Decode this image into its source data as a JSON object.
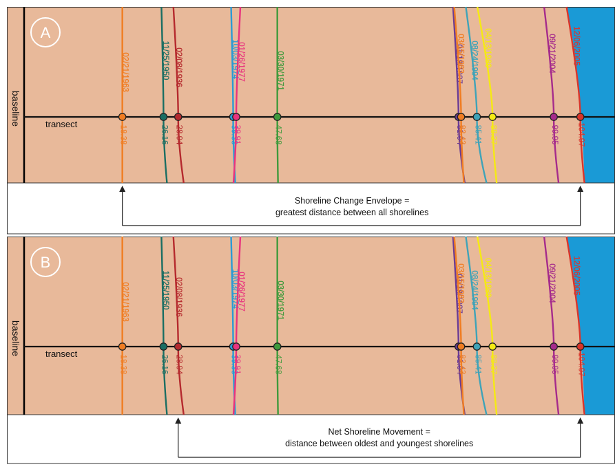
{
  "colors": {
    "land": "#e8b99a",
    "water": "#1a9ad6",
    "border": "#333333",
    "arrow": "#222222"
  },
  "labels": {
    "baseline": "baseline",
    "transect": "transect"
  },
  "shorelines": [
    {
      "date": "02/21/1963",
      "distance": "18.38",
      "color": "#f07d22",
      "position": 18.38
    },
    {
      "date": "11/25/1950",
      "distance": "26.16",
      "color": "#1a6e63",
      "position": 26.16
    },
    {
      "date": "02/08/1936",
      "distance": "28.94",
      "color": "#b52a2e",
      "position": 28.94
    },
    {
      "date": "10/03/1974",
      "distance": "39.33",
      "color": "#2b9bd4",
      "position": 39.33
    },
    {
      "date": "01/26/1977",
      "distance": "39.91",
      "color": "#e8337e",
      "position": 39.91
    },
    {
      "date": "03/30/1971",
      "distance": "47.68",
      "color": "#3f9a3c",
      "position": 47.68
    },
    {
      "date": "01/18/1987",
      "distance": "81.94",
      "color": "#6a3b94",
      "position": 81.94
    },
    {
      "date": "03/15/1983",
      "distance": "82.43",
      "color": "#f07d22",
      "position": 82.43
    },
    {
      "date": "08/24/1994",
      "distance": "85.41",
      "color": "#3fa3b8",
      "position": 85.41
    },
    {
      "date": "04/13/1989",
      "distance": "88.37",
      "color": "#f5ea13",
      "position": 88.37
    },
    {
      "date": "09/21/2004",
      "distance": "99.95",
      "color": "#a52b8c",
      "position": 99.95
    },
    {
      "date": "12/06/2005",
      "distance": "104.97",
      "color": "#d9352b",
      "position": 104.97
    }
  ],
  "panels": [
    {
      "letter": "A",
      "caption_line1": "Shoreline Change Envelope =",
      "caption_line2": "greatest distance between all shorelines",
      "from_date": "02/21/1963",
      "to_date": "12/06/2005"
    },
    {
      "letter": "B",
      "caption_line1": "Net Shoreline Movement =",
      "caption_line2": "distance between oldest and youngest shorelines",
      "from_date": "02/08/1936",
      "to_date": "12/06/2005"
    }
  ]
}
